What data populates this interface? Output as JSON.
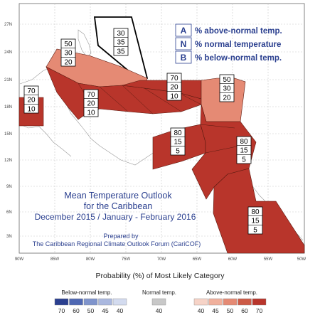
{
  "map": {
    "axes": {
      "lat_labels": [
        "27N",
        "24N",
        "21N",
        "18N",
        "15N",
        "12N",
        "9N",
        "6N",
        "3N"
      ],
      "lon_labels": [
        "90W",
        "85W",
        "80W",
        "75W",
        "70W",
        "65W",
        "60W",
        "55W",
        "50W"
      ]
    },
    "title": {
      "line1": "Mean Temperature Outlook",
      "line2": "for the Caribbean",
      "line3": "December 2015 / January - February 2016"
    },
    "credit": {
      "line1": "Prepared by",
      "line2": "The Caribbean Regional Climate Outlook Forum (CariCOF)"
    },
    "key": [
      {
        "letter": "A",
        "text": "% above-normal temp."
      },
      {
        "letter": "N",
        "text": "% normal temperature"
      },
      {
        "letter": "B",
        "text": "% below-normal temp."
      }
    ],
    "regions": [
      {
        "id": "bahamas",
        "above": "30",
        "normal": "35",
        "below": "35",
        "color": "#ffffff"
      },
      {
        "id": "cuba-jamaica",
        "above": "50",
        "normal": "30",
        "below": "20",
        "color": "#e58a74"
      },
      {
        "id": "belize",
        "above": "70",
        "normal": "20",
        "below": "10",
        "color": "#b8352b"
      },
      {
        "id": "central",
        "above": "70",
        "normal": "20",
        "below": "10",
        "color": "#b8352b"
      },
      {
        "id": "hispaniola-pr",
        "above": "70",
        "normal": "20",
        "below": "10",
        "color": "#b8352b"
      },
      {
        "id": "leewards",
        "above": "50",
        "normal": "30",
        "below": "20",
        "color": "#e58a74"
      },
      {
        "id": "sw-caribbean",
        "above": "80",
        "normal": "15",
        "below": "5",
        "color": "#b8352b"
      },
      {
        "id": "windwards",
        "above": "80",
        "normal": "15",
        "below": "5",
        "color": "#b8352b"
      },
      {
        "id": "guianas",
        "above": "80",
        "normal": "15",
        "below": "5",
        "color": "#b8352b"
      }
    ]
  },
  "legend": {
    "title": "Probability (%) of Most Likely Category",
    "groups": [
      {
        "label": "Below-normal temp.",
        "swatches": [
          {
            "value": "70",
            "color": "#2a3f8f"
          },
          {
            "value": "60",
            "color": "#4f68b3"
          },
          {
            "value": "50",
            "color": "#7f94cc"
          },
          {
            "value": "45",
            "color": "#aab8df"
          },
          {
            "value": "40",
            "color": "#d3dbef"
          }
        ]
      },
      {
        "label": "Normal temp.",
        "swatches": [
          {
            "value": "40",
            "color": "#c8c8c8"
          }
        ]
      },
      {
        "label": "Above-normal temp.",
        "swatches": [
          {
            "value": "40",
            "color": "#f6d3c7"
          },
          {
            "value": "45",
            "color": "#f0b09c"
          },
          {
            "value": "50",
            "color": "#e58a74"
          },
          {
            "value": "60",
            "color": "#cc5a46"
          },
          {
            "value": "70",
            "color": "#b8352b"
          }
        ]
      }
    ]
  }
}
